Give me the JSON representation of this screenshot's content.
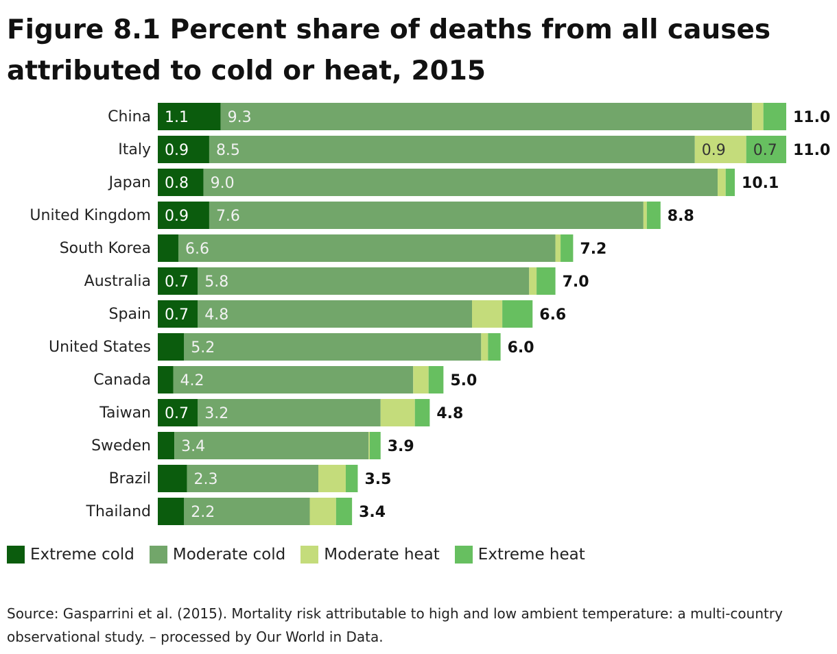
{
  "title": "Figure 8.1 Percent share of deaths from all causes attributed to cold or heat, 2015",
  "source": "Source: Gasparrini et al. (2015). Mortality risk attributable to high and low ambient temperature: a multi-country observational study. – processed by Our World in Data.",
  "colors": {
    "extreme_cold": "#0b5c0d",
    "moderate_cold": "#72a66a",
    "moderate_heat": "#c4dc7b",
    "extreme_heat": "#67bf60"
  },
  "chart_data": {
    "type": "bar",
    "orientation": "horizontal",
    "stacked": true,
    "title": "Figure 8.1 Percent share of deaths from all causes attributed to cold or heat, 2015",
    "categories": [
      "China",
      "Italy",
      "Japan",
      "United Kingdom",
      "South Korea",
      "Australia",
      "Spain",
      "United States",
      "Canada",
      "Taiwan",
      "Sweden",
      "Brazil",
      "Thailand"
    ],
    "series": [
      {
        "name": "Extreme cold",
        "color": "#0b5c0d",
        "values": [
          1.1,
          0.9,
          0.8,
          0.9,
          0.36,
          0.7,
          0.7,
          0.46,
          0.27,
          0.7,
          0.29,
          0.51,
          0.46
        ]
      },
      {
        "name": "Moderate cold",
        "color": "#72a66a",
        "values": [
          9.3,
          8.5,
          9.0,
          7.6,
          6.6,
          5.8,
          4.8,
          5.2,
          4.2,
          3.2,
          3.4,
          2.3,
          2.2
        ]
      },
      {
        "name": "Moderate heat",
        "color": "#c4dc7b",
        "values": [
          0.2,
          0.9,
          0.14,
          0.06,
          0.09,
          0.13,
          0.53,
          0.12,
          0.27,
          0.6,
          0.02,
          0.48,
          0.46
        ]
      },
      {
        "name": "Extreme heat",
        "color": "#67bf60",
        "values": [
          0.4,
          0.7,
          0.16,
          0.24,
          0.22,
          0.33,
          0.53,
          0.22,
          0.26,
          0.26,
          0.19,
          0.21,
          0.28
        ]
      }
    ],
    "segment_labels": [
      [
        "1.1",
        "9.3",
        "",
        ""
      ],
      [
        "0.9",
        "8.5",
        "0.9",
        "0.7"
      ],
      [
        "0.8",
        "9.0",
        "",
        ""
      ],
      [
        "0.9",
        "7.6",
        "",
        ""
      ],
      [
        "",
        "6.6",
        "",
        ""
      ],
      [
        "0.7",
        "5.8",
        "",
        ""
      ],
      [
        "0.7",
        "4.8",
        "",
        ""
      ],
      [
        "",
        "5.2",
        "",
        ""
      ],
      [
        "",
        "4.2",
        "",
        ""
      ],
      [
        "0.7",
        "3.2",
        "",
        ""
      ],
      [
        "",
        "3.4",
        "",
        ""
      ],
      [
        "",
        "2.3",
        "",
        ""
      ],
      [
        "",
        "2.2",
        "",
        ""
      ]
    ],
    "totals": [
      "11.0",
      "11.0",
      "10.1",
      "8.8",
      "7.2",
      "7.0",
      "6.6",
      "6.0",
      "5.0",
      "4.8",
      "3.9",
      "3.5",
      "3.4"
    ],
    "xlim": [
      0,
      11.0
    ],
    "legend_position": "bottom-left",
    "grid": false
  },
  "legend": [
    {
      "label": "Extreme cold",
      "color": "#0b5c0d"
    },
    {
      "label": "Moderate cold",
      "color": "#72a66a"
    },
    {
      "label": "Moderate heat",
      "color": "#c4dc7b"
    },
    {
      "label": "Extreme heat",
      "color": "#67bf60"
    }
  ]
}
